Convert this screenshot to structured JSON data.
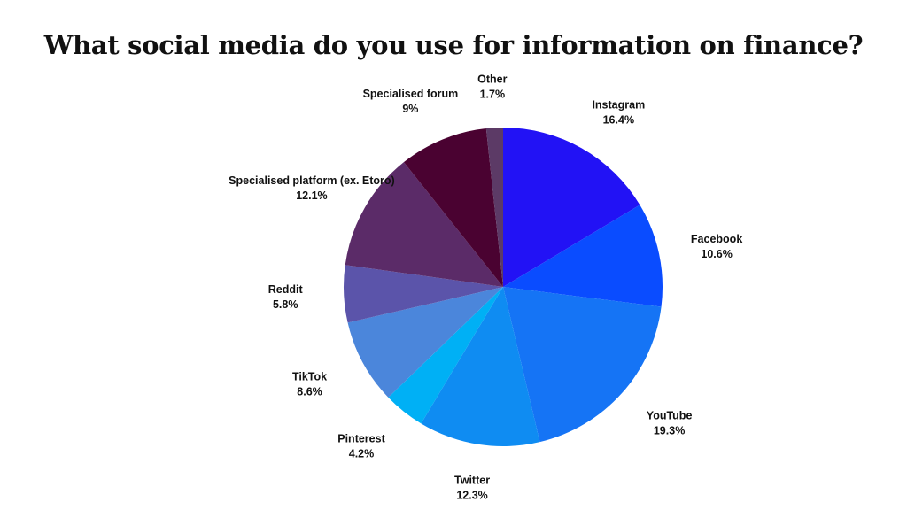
{
  "chart_data": {
    "type": "pie",
    "title": "What social media do you use for information on finance?",
    "slices": [
      {
        "name": "Instagram",
        "value": 16.4,
        "label": "16.4%",
        "color": "#2212f5"
      },
      {
        "name": "Facebook",
        "value": 10.6,
        "label": "10.6%",
        "color": "#0a4cff"
      },
      {
        "name": "YouTube",
        "value": 19.3,
        "label": "19.3%",
        "color": "#1574f5"
      },
      {
        "name": "Twitter",
        "value": 12.3,
        "label": "12.3%",
        "color": "#0f8cf2"
      },
      {
        "name": "Pinterest",
        "value": 4.2,
        "label": "4.2%",
        "color": "#00b0f5"
      },
      {
        "name": "TikTok",
        "value": 8.6,
        "label": "8.6%",
        "color": "#4b86db"
      },
      {
        "name": "Reddit",
        "value": 5.8,
        "label": "5.8%",
        "color": "#5b54aa"
      },
      {
        "name": "Specialised platform (ex. Etoro)",
        "value": 12.1,
        "label": "12.1%",
        "color": "#5b2b68"
      },
      {
        "name": "Specialised forum",
        "value": 9,
        "label": "9%",
        "color": "#4a0231"
      },
      {
        "name": "Other",
        "value": 1.7,
        "label": "1.7%",
        "color": "#5c3a66"
      }
    ]
  }
}
